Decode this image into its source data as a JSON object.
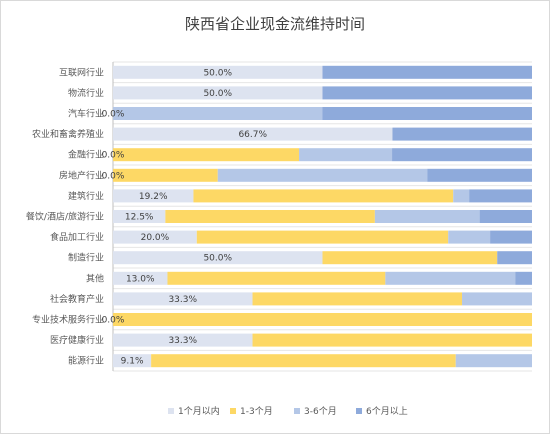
{
  "chart_data": {
    "type": "bar",
    "orientation": "horizontal",
    "stacked": "percent",
    "title": "陕西省企业现金流维持时间",
    "categories": [
      "互联网行业",
      "物流行业",
      "汽车行业",
      "农业和畜禽养殖业",
      "金融行业",
      "房地产行业",
      "建筑行业",
      "餐饮/酒店/旅游行业",
      "食品加工行业",
      "制造行业",
      "其他",
      "社会教育产业",
      "专业技术服务行业",
      "医疗健康行业",
      "能源行业"
    ],
    "series": [
      {
        "name": "1个月以内",
        "color": "#dde3f0",
        "values": [
          50.0,
          50.0,
          0.0,
          66.7,
          0.0,
          0.0,
          19.2,
          12.5,
          20.0,
          50.0,
          13.0,
          33.3,
          0.0,
          33.3,
          9.1
        ]
      },
      {
        "name": "1-3个月",
        "color": "#fdd865",
        "values": [
          0.0,
          0.0,
          0.0,
          0.0,
          44.4,
          25.0,
          62.0,
          50.0,
          60.0,
          41.7,
          52.0,
          50.0,
          100.0,
          66.7,
          72.7
        ]
      },
      {
        "name": "3-6个月",
        "color": "#b4c7e7",
        "values": [
          0.0,
          0.0,
          50.0,
          0.0,
          22.2,
          50.0,
          3.8,
          25.0,
          10.0,
          0.0,
          31.0,
          16.7,
          0.0,
          0.0,
          18.2
        ]
      },
      {
        "name": "6个月以上",
        "color": "#8eaadb",
        "values": [
          50.0,
          50.0,
          50.0,
          33.3,
          33.4,
          25.0,
          15.0,
          12.5,
          10.0,
          8.3,
          4.0,
          0.0,
          0.0,
          0.0,
          0.0
        ]
      }
    ],
    "data_labels": [
      "50.0%",
      "50.0%",
      "0.0%",
      "66.7%",
      "0.0%",
      "0.0%",
      "19.2%",
      "12.5%",
      "20.0%",
      "50.0%",
      "13.0%",
      "33.3%",
      "0.0%",
      "33.3%",
      "9.1%"
    ],
    "xlim": [
      0,
      100
    ],
    "grid": true,
    "legend_position": "bottom"
  }
}
